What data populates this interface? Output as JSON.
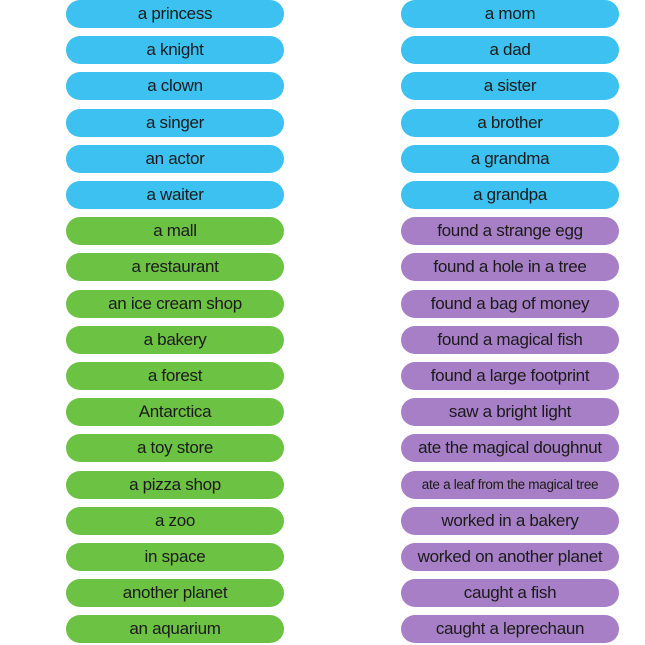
{
  "left": [
    "a princess",
    "a knight",
    "a clown",
    "a singer",
    "an actor",
    "a waiter",
    "a mall",
    "a restaurant",
    "an ice cream shop",
    "a bakery",
    "a forest",
    "Antarctica",
    "a toy store",
    "a pizza shop",
    "a zoo",
    "in space",
    "another planet",
    "an aquarium"
  ],
  "right": [
    "a mom",
    "a dad",
    "a sister",
    "a brother",
    "a grandma",
    "a grandpa",
    "found a strange egg",
    "found a hole in a tree",
    "found a bag of money",
    "found a magical fish",
    "found a large footprint",
    "saw a bright light",
    "ate the magical doughnut",
    "ate a leaf from the magical tree",
    "worked in a bakery",
    "worked on another planet",
    "caught a fish",
    "caught a leprechaun"
  ]
}
